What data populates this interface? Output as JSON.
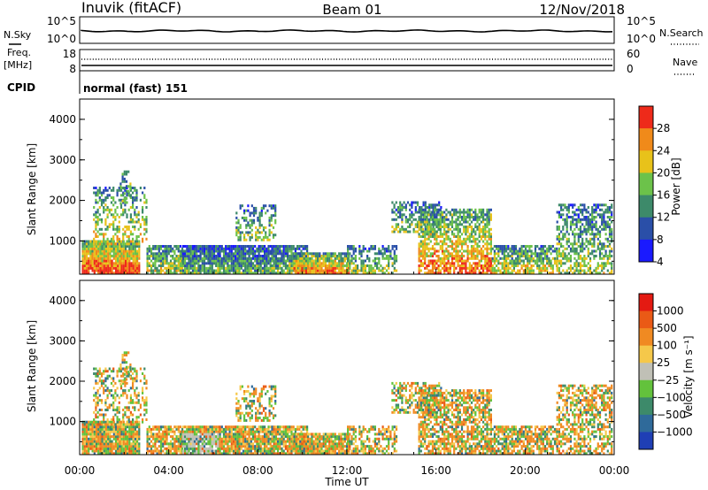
{
  "header": {
    "station": "Inuvik (fitACF)",
    "beam": "Beam 01",
    "date": "12/Nov/2018"
  },
  "top_panels": {
    "nsky_label": "N.Sky",
    "nsearch_label": "N.Search",
    "nsky_ticks": [
      "10^5",
      "10^0"
    ],
    "nsearch_ticks": [
      "10^5",
      "10^0"
    ],
    "freq_label_1": "Freq.",
    "freq_label_2": "[MHz]",
    "freq_ticks": [
      "18",
      "8"
    ],
    "nave_label": "Nave",
    "nave_ticks": [
      "60",
      "0"
    ],
    "cpid_label": "CPID",
    "cpid_value": "normal (fast) 151"
  },
  "chart_data": [
    {
      "type": "heatmap",
      "panel": "power",
      "ylabel": "Slant Range [km]",
      "yticks": [
        "4000",
        "3000",
        "2000",
        "1000"
      ],
      "ylim": [
        180,
        4500
      ],
      "colorbar_label": "Power [dB]",
      "colorbar_ticks": [
        "28",
        "24",
        "20",
        "16",
        "12",
        "8",
        "4"
      ],
      "colors": [
        "#1a1aff",
        "#2a4fa8",
        "#3d8a6a",
        "#6cc24a",
        "#e8c21a",
        "#f08a1a",
        "#ee2a1a"
      ]
    },
    {
      "type": "heatmap",
      "panel": "velocity",
      "xlabel": "Time UT",
      "ylabel": "Slant Range [km]",
      "yticks": [
        "4000",
        "3000",
        "2000",
        "1000"
      ],
      "xticks": [
        "00:00",
        "04:00",
        "08:00",
        "12:00",
        "16:00",
        "20:00",
        "00:00"
      ],
      "ylim": [
        180,
        4500
      ],
      "xlim_hours": [
        0,
        24
      ],
      "colorbar_label": "Velocity [m s⁻¹]",
      "colorbar_ticks": [
        "1000",
        "500",
        "100",
        "25",
        "−25",
        "−100",
        "−500",
        "−1000"
      ],
      "colors": [
        "#1f3fb5",
        "#2f6a9a",
        "#3d8a6a",
        "#63c23c",
        "#c0c0b6",
        "#f5c84a",
        "#f08a22",
        "#ea5a16",
        "#e41a12"
      ]
    }
  ]
}
